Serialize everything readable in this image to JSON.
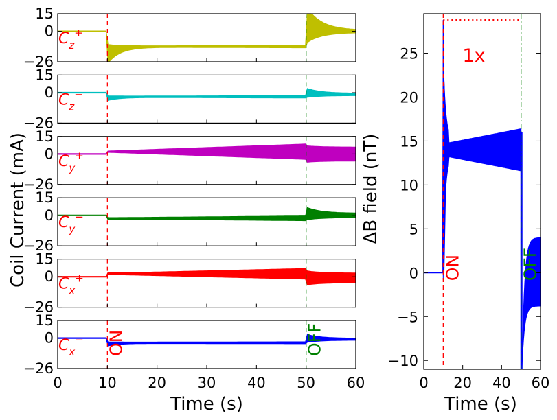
{
  "chart_data": [
    {
      "type": "line",
      "panel": "coil-currents",
      "ylabel": "Coil Current (mA)",
      "xlabel": "Time (s)",
      "xlim": [
        0,
        60
      ],
      "xticks": [
        "0",
        "10",
        "20",
        "30",
        "40",
        "50",
        "60"
      ],
      "ylim": [
        -26,
        15
      ],
      "yticks": [
        "15",
        "0",
        "−26"
      ],
      "event_lines": [
        {
          "x": 10,
          "color": "#ff0000",
          "style": "dashed"
        },
        {
          "x": 50,
          "color": "#008000",
          "style": "dashed"
        }
      ],
      "annotations": [
        {
          "text": "ON",
          "x": 10,
          "color": "#ff0000"
        },
        {
          "text": "OFF",
          "x": 50,
          "color": "#008000"
        }
      ],
      "series": [
        {
          "name": "Cz+",
          "label_main": "C",
          "label_sub": "z",
          "label_sup": "+",
          "color": "#bfbf00",
          "initial": 0,
          "settled": -13,
          "jump": -26,
          "band_growth": 0.5,
          "post_jump": 14,
          "post_settled": 0
        },
        {
          "name": "Cz−",
          "label_main": "C",
          "label_sub": "z",
          "label_sup": "−",
          "color": "#00bfbf",
          "initial": 0,
          "settled": -3.5,
          "jump": -6,
          "band_growth": 0.5,
          "post_jump": 2,
          "post_settled": -1.5
        },
        {
          "name": "Cy+",
          "label_main": "C",
          "label_sub": "y",
          "label_sup": "+",
          "color": "#bf00bf",
          "initial": 0,
          "settled": 2,
          "jump": 2,
          "band_growth": 6,
          "post_jump": 0,
          "post_settled": 0
        },
        {
          "name": "Cy−",
          "label_main": "C",
          "label_sub": "y",
          "label_sup": "−",
          "color": "#008000",
          "initial": 0,
          "settled": -2.5,
          "jump": -3,
          "band_growth": 1.5,
          "post_jump": 4,
          "post_settled": 0
        },
        {
          "name": "Cx+",
          "label_main": "C",
          "label_sub": "x",
          "label_sup": "+",
          "color": "#ff0000",
          "initial": 0,
          "settled": 2.5,
          "jump": 3,
          "band_growth": 4,
          "post_jump": -1,
          "post_settled": -1
        },
        {
          "name": "Cx−",
          "label_main": "C",
          "label_sub": "x",
          "label_sup": "−",
          "color": "#0000ff",
          "initial": 0,
          "settled": -4,
          "jump": -6,
          "band_growth": 0.3,
          "post_jump": 1,
          "post_settled": -1
        }
      ]
    },
    {
      "type": "line",
      "panel": "delta-b-field",
      "ylabel": "ΔB field (nT)",
      "xlabel": "Time (s)",
      "xlim": [
        0,
        60
      ],
      "xticks": [
        "0",
        "20",
        "40",
        "60"
      ],
      "ylim": [
        -11,
        29.5
      ],
      "yticks": [
        "−10",
        "−5",
        "0",
        "5",
        "10",
        "15",
        "20",
        "25"
      ],
      "reference_level": {
        "y": 28.8,
        "color": "#ff0000",
        "style": "dotted",
        "label": "1x"
      },
      "event_lines": [
        {
          "x": 10,
          "color": "#ff0000",
          "style": "dashed"
        },
        {
          "x": 50,
          "color": "#008000",
          "style": "dashdot"
        }
      ],
      "annotations": [
        {
          "text": "ON",
          "x": 10,
          "color": "#ff0000"
        },
        {
          "text": "OFF",
          "x": 50,
          "color": "#008000"
        }
      ],
      "series": [
        {
          "name": "ΔB",
          "color": "#0000ff",
          "points": [
            [
              0,
              0
            ],
            [
              9.5,
              0
            ],
            [
              10,
              28.8
            ],
            [
              10.5,
              2
            ],
            [
              12,
              14
            ],
            [
              14,
              14.8
            ],
            [
              30,
              14.5
            ],
            [
              50,
              14
            ]
          ],
          "band_top": [
            [
              10,
              28.8
            ],
            [
              13,
              14.6
            ],
            [
              20,
              15
            ],
            [
              50,
              16
            ]
          ],
          "band_bottom": [
            [
              10,
              0
            ],
            [
              13,
              13
            ],
            [
              20,
              12.8
            ],
            [
              50,
              11.5
            ]
          ],
          "off_spike_min": -11,
          "post_off": [
            [
              50,
              16
            ],
            [
              50.5,
              -11
            ],
            [
              54,
              4
            ],
            [
              60,
              4
            ]
          ],
          "post_off_bottom": [
            [
              51,
              -1
            ],
            [
              54,
              -3.8
            ],
            [
              60,
              -3.8
            ]
          ]
        }
      ]
    }
  ]
}
